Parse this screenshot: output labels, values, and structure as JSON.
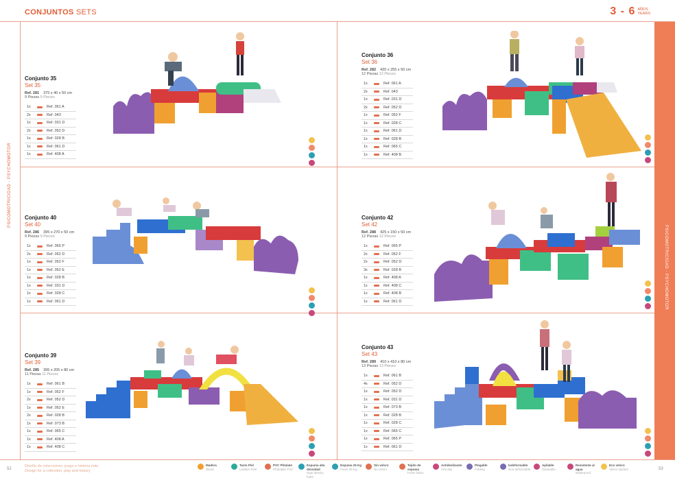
{
  "header": {
    "title_bold": "CONJUNTOS",
    "title_light": "SETS",
    "age_range": "3 - 6",
    "age_unit_es": "AÑOS",
    "age_unit_en": "YEARS"
  },
  "side": {
    "left": "PSICOMOTRICIDAD - PSYCHOMOTOR",
    "right": "PSICOMOTRICIDAD - PSYCHOMOTOR"
  },
  "sets": [
    {
      "name": "Conjunto 35",
      "set": "Set 35",
      "ref": "Ref. 281",
      "dims": "375 x 40 x 50 cm",
      "pieces": "9 Piezas",
      "pieces_en": "9 Pieces",
      "parts": [
        [
          "1x",
          "Ref. 061 A"
        ],
        [
          "2x",
          "Ref. 043"
        ],
        [
          "1x",
          "Ref. 031 D"
        ],
        [
          "2x",
          "Ref. 052 D"
        ],
        [
          "1x",
          "Ref. 028 B"
        ],
        [
          "1x",
          "Ref. 061 D"
        ],
        [
          "1x",
          "Ref. 408 A"
        ]
      ]
    },
    {
      "name": "Conjunto 36",
      "set": "Set 36",
      "ref": "Ref. 282",
      "dims": "420 x 255 x 50 cm",
      "pieces": "12 Piezas",
      "pieces_en": "12 Pieces",
      "parts": [
        [
          "1x",
          "Ref. 061 A"
        ],
        [
          "2x",
          "Ref. 043"
        ],
        [
          "1x",
          "Ref. 031 D"
        ],
        [
          "2x",
          "Ref. 052 D"
        ],
        [
          "1x",
          "Ref. 052 F"
        ],
        [
          "1x",
          "Ref. 028 C"
        ],
        [
          "1x",
          "Ref. 061 D"
        ],
        [
          "1x",
          "Ref. 028 B"
        ],
        [
          "1x",
          "Ref. 065 C"
        ],
        [
          "1x",
          "Ref. 408 B"
        ]
      ]
    },
    {
      "name": "Conjunto 40",
      "set": "Set 40",
      "ref": "Ref. 286",
      "dims": "395 x 270 x 50 cm",
      "pieces": "9 Piezas",
      "pieces_en": "9 Pieces",
      "parts": [
        [
          "1x",
          "Ref. 065 P"
        ],
        [
          "2x",
          "Ref. 052 D"
        ],
        [
          "1x",
          "Ref. 052 F"
        ],
        [
          "1x",
          "Ref. 052 E"
        ],
        [
          "1x",
          "Ref. 028 B"
        ],
        [
          "1x",
          "Ref. 031 D"
        ],
        [
          "1x",
          "Ref. 028 C"
        ],
        [
          "1x",
          "Ref. 061 D"
        ]
      ]
    },
    {
      "name": "Conjunto 42",
      "set": "Set 42",
      "ref": "Ref. 288",
      "dims": "425 x 150 x 50 cm",
      "pieces": "12 Piezas",
      "pieces_en": "12 Pieces",
      "parts": [
        [
          "1x",
          "Ref. 065 P"
        ],
        [
          "2x",
          "Ref. 052 F"
        ],
        [
          "2x",
          "Ref. 052 D"
        ],
        [
          "3x",
          "Ref. 028 B"
        ],
        [
          "1x",
          "Ref. 408 A"
        ],
        [
          "1x",
          "Ref. 408 C"
        ],
        [
          "1x",
          "Ref. 408 B"
        ],
        [
          "1x",
          "Ref. 061 D"
        ]
      ]
    },
    {
      "name": "Conjunto 39",
      "set": "Set 39",
      "ref": "Ref. 285",
      "dims": "395 x 205 x 80 cm",
      "pieces": "11 Piezas",
      "pieces_en": "11 Pieces",
      "parts": [
        [
          "1x",
          "Ref. 061 B"
        ],
        [
          "1x",
          "Ref. 052 F"
        ],
        [
          "2x",
          "Ref. 052 D"
        ],
        [
          "1x",
          "Ref. 052 E"
        ],
        [
          "2x",
          "Ref. 028 B"
        ],
        [
          "1x",
          "Ref. 073 B"
        ],
        [
          "1x",
          "Ref. 065 C"
        ],
        [
          "1x",
          "Ref. 408 A"
        ],
        [
          "1x",
          "Ref. 408 C"
        ]
      ]
    },
    {
      "name": "Conjunto 43",
      "set": "Set 43",
      "ref": "Ref. 289",
      "dims": "410 x 410 x 80 cm",
      "pieces": "13 Piezas",
      "pieces_en": "13 Pieces",
      "parts": [
        [
          "1x",
          "Ref. 061 B"
        ],
        [
          "4x",
          "Ref. 052 D"
        ],
        [
          "1x",
          "Ref. 052 D"
        ],
        [
          "1x",
          "Ref. 031 D"
        ],
        [
          "1x",
          "Ref. 073 B"
        ],
        [
          "1x",
          "Ref. 028 B"
        ],
        [
          "1x",
          "Ref. 028 C"
        ],
        [
          "1x",
          "Ref. 065 C"
        ],
        [
          "1x",
          "Ref. 065 P"
        ],
        [
          "1x",
          "Ref. 061 D"
        ]
      ]
    }
  ],
  "badge_colors": [
    "#f2c14e",
    "#f08a6a",
    "#2c9fb3",
    "#c7487a"
  ],
  "footer": {
    "page_left": "52",
    "page_right": "53",
    "note_es": "Diseño de colecciones, juego e historia más",
    "note_en": "Design for a collection, play and history",
    "legend": [
      {
        "es": "Madera",
        "en": "Wood",
        "color": "#f0a030"
      },
      {
        "es": "Tacto Piel",
        "en": "Leather Feel",
        "color": "#2aa99a"
      },
      {
        "es": "PVC Phtalate",
        "en": "Phthalate PVC",
        "color": "#e07050"
      },
      {
        "es": "Espuma alta densidad",
        "en": "High density foam",
        "color": "#2c9fb3"
      },
      {
        "es": "Espuma 25 Kg",
        "en": "Foam 25 Kg",
        "color": "#2c9fb3"
      },
      {
        "es": "Sin velcro",
        "en": "No velcro",
        "color": "#e07050"
      },
      {
        "es": "Tejido de espuma",
        "en": "Foam fabric",
        "color": "#e07050"
      },
      {
        "es": "Antideslizante",
        "en": "Anti-slip",
        "color": "#c7487a"
      },
      {
        "es": "Plegable",
        "en": "Folding",
        "color": "#7a6bb5"
      },
      {
        "es": "Indeformable",
        "en": "Non-deformable",
        "color": "#7a6bb5"
      },
      {
        "es": "Apilable",
        "en": "Stackable",
        "color": "#c7487a"
      },
      {
        "es": "Resistente al agua",
        "en": "Waterproof",
        "color": "#c7487a"
      },
      {
        "es": "Eco velcro",
        "en": "Velcro system",
        "color": "#f2c14e"
      }
    ]
  }
}
